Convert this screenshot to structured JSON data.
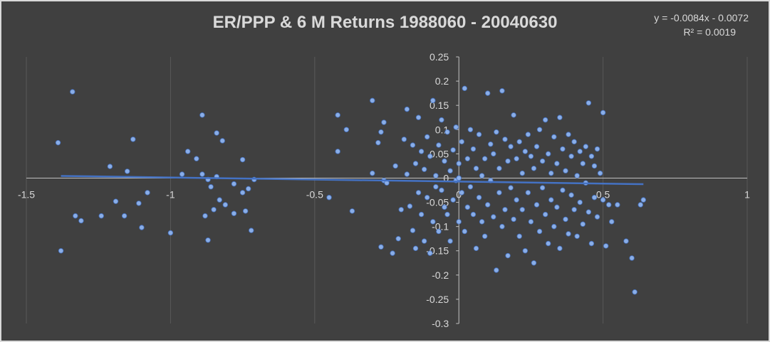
{
  "chart_data": {
    "type": "scatter",
    "title": "ER/PPP  & 6 M Returns 1988060 - 20040630",
    "xlabel": "",
    "ylabel": "",
    "xlim": [
      -1.5,
      1
    ],
    "ylim": [
      -0.3,
      0.25
    ],
    "x_ticks": [
      "-1.5",
      "-1",
      "-0.5",
      "0",
      "0.5",
      "1"
    ],
    "y_ticks": [
      "0.25",
      "0.2",
      "0.15",
      "0.1",
      "0.05",
      "0",
      "-0.05",
      "-0.1",
      "-0.15",
      "-0.2",
      "-0.25",
      "-0.3"
    ],
    "grid": "vertical",
    "trendline": {
      "type": "linear",
      "slope": -0.0084,
      "intercept": -0.0072,
      "x_range": [
        -1.38,
        0.64
      ],
      "equation_text": "y = -0.0084x - 0.0072",
      "r2_text": "R² = 0.0019"
    },
    "colors": {
      "background": "#404040",
      "text": "#d9d9d9",
      "grid": "#595959",
      "point": "#8fb4f0",
      "trendline": "#4472c4"
    },
    "points": [
      [
        -1.39,
        0.073
      ],
      [
        -1.34,
        0.178
      ],
      [
        -1.38,
        -0.15
      ],
      [
        -1.33,
        -0.078
      ],
      [
        -1.31,
        -0.088
      ],
      [
        -1.24,
        -0.078
      ],
      [
        -1.21,
        0.024
      ],
      [
        -1.19,
        -0.048
      ],
      [
        -1.16,
        -0.078
      ],
      [
        -1.15,
        0.014
      ],
      [
        -1.13,
        0.08
      ],
      [
        -1.11,
        -0.052
      ],
      [
        -1.1,
        -0.102
      ],
      [
        -1.08,
        -0.03
      ],
      [
        -1.0,
        -0.113
      ],
      [
        -0.96,
        0.008
      ],
      [
        -0.94,
        0.055
      ],
      [
        -0.91,
        0.04
      ],
      [
        -0.89,
        0.13
      ],
      [
        -0.89,
        0.008
      ],
      [
        -0.88,
        -0.078
      ],
      [
        -0.87,
        -0.128
      ],
      [
        -0.87,
        -0.003
      ],
      [
        -0.86,
        -0.018
      ],
      [
        -0.85,
        -0.065
      ],
      [
        -0.84,
        0.003
      ],
      [
        -0.84,
        0.093
      ],
      [
        -0.83,
        -0.045
      ],
      [
        -0.82,
        0.077
      ],
      [
        -0.81,
        -0.055
      ],
      [
        -0.78,
        -0.073
      ],
      [
        -0.78,
        -0.012
      ],
      [
        -0.75,
        -0.03
      ],
      [
        -0.75,
        0.038
      ],
      [
        -0.74,
        -0.068
      ],
      [
        -0.73,
        -0.022
      ],
      [
        -0.72,
        -0.108
      ],
      [
        -0.71,
        -0.003
      ],
      [
        -0.45,
        -0.04
      ],
      [
        -0.42,
        0.13
      ],
      [
        -0.42,
        0.055
      ],
      [
        -0.39,
        0.1
      ],
      [
        -0.37,
        -0.068
      ],
      [
        -0.3,
        0.16
      ],
      [
        -0.3,
        0.01
      ],
      [
        -0.28,
        0.073
      ],
      [
        -0.27,
        0.095
      ],
      [
        -0.27,
        -0.142
      ],
      [
        -0.26,
        0.115
      ],
      [
        -0.26,
        -0.005
      ],
      [
        -0.25,
        -0.01
      ],
      [
        -0.23,
        -0.155
      ],
      [
        -0.22,
        0.025
      ],
      [
        -0.21,
        -0.125
      ],
      [
        -0.2,
        -0.065
      ],
      [
        -0.19,
        0.08
      ],
      [
        -0.18,
        0.142
      ],
      [
        -0.18,
        0.008
      ],
      [
        -0.17,
        -0.058
      ],
      [
        -0.16,
        -0.108
      ],
      [
        -0.16,
        0.068
      ],
      [
        -0.15,
        -0.145
      ],
      [
        -0.15,
        0.03
      ],
      [
        -0.14,
        0.125
      ],
      [
        -0.14,
        -0.03
      ],
      [
        -0.13,
        0.055
      ],
      [
        -0.13,
        -0.075
      ],
      [
        -0.12,
        -0.13
      ],
      [
        -0.12,
        0.018
      ],
      [
        -0.11,
        0.085
      ],
      [
        -0.11,
        -0.04
      ],
      [
        -0.1,
        -0.155
      ],
      [
        -0.1,
        0.045
      ],
      [
        -0.09,
        0.16
      ],
      [
        -0.09,
        -0.09
      ],
      [
        -0.08,
        0.005
      ],
      [
        -0.08,
        -0.018
      ],
      [
        -0.07,
        0.068
      ],
      [
        -0.07,
        -0.11
      ],
      [
        -0.06,
        0.12
      ],
      [
        -0.06,
        -0.025
      ],
      [
        -0.05,
        0.035
      ],
      [
        -0.05,
        -0.06
      ],
      [
        -0.04,
        0.095
      ],
      [
        -0.04,
        -0.075
      ],
      [
        -0.03,
        -0.13
      ],
      [
        -0.03,
        0.015
      ],
      [
        -0.02,
        0.058
      ],
      [
        -0.02,
        -0.045
      ],
      [
        -0.01,
        0.105
      ],
      [
        -0.01,
        -0.005
      ],
      [
        0.0,
        -0.09
      ],
      [
        0.0,
        0.03
      ],
      [
        0.01,
        0.075
      ],
      [
        0.01,
        -0.03
      ],
      [
        0.02,
        0.185
      ],
      [
        0.02,
        -0.11
      ],
      [
        0.03,
        0.04
      ],
      [
        0.03,
        -0.06
      ],
      [
        0.04,
        0.1
      ],
      [
        0.04,
        -0.018
      ],
      [
        0.05,
        -0.075
      ],
      [
        0.05,
        0.06
      ],
      [
        0.06,
        -0.145
      ],
      [
        0.06,
        0.02
      ],
      [
        0.07,
        -0.04
      ],
      [
        0.07,
        0.09
      ],
      [
        0.08,
        0.005
      ],
      [
        0.08,
        -0.09
      ],
      [
        0.09,
        0.04
      ],
      [
        0.09,
        -0.12
      ],
      [
        0.1,
        0.175
      ],
      [
        0.1,
        -0.055
      ],
      [
        0.11,
        0.07
      ],
      [
        0.11,
        -0.005
      ],
      [
        0.12,
        0.05
      ],
      [
        0.12,
        -0.08
      ],
      [
        0.13,
        0.095
      ],
      [
        0.13,
        -0.19
      ],
      [
        0.14,
        0.02
      ],
      [
        0.14,
        -0.03
      ],
      [
        0.15,
        0.18
      ],
      [
        0.15,
        -0.1
      ],
      [
        0.16,
        0.08
      ],
      [
        0.16,
        -0.065
      ],
      [
        0.17,
        0.035
      ],
      [
        0.17,
        -0.16
      ],
      [
        0.18,
        0.065
      ],
      [
        0.18,
        -0.02
      ],
      [
        0.19,
        0.13
      ],
      [
        0.19,
        -0.085
      ],
      [
        0.2,
        0.04
      ],
      [
        0.2,
        -0.045
      ],
      [
        0.21,
        0.075
      ],
      [
        0.21,
        -0.12
      ],
      [
        0.22,
        0.01
      ],
      [
        0.22,
        -0.065
      ],
      [
        0.23,
        0.055
      ],
      [
        0.23,
        -0.15
      ],
      [
        0.24,
        0.09
      ],
      [
        0.24,
        -0.03
      ],
      [
        0.25,
        0.045
      ],
      [
        0.25,
        -0.09
      ],
      [
        0.26,
        0.02
      ],
      [
        0.26,
        -0.175
      ],
      [
        0.27,
        0.065
      ],
      [
        0.27,
        -0.055
      ],
      [
        0.28,
        0.1
      ],
      [
        0.28,
        -0.11
      ],
      [
        0.29,
        0.035
      ],
      [
        0.29,
        -0.02
      ],
      [
        0.3,
        0.12
      ],
      [
        0.3,
        -0.075
      ],
      [
        0.31,
        0.05
      ],
      [
        0.31,
        -0.135
      ],
      [
        0.32,
        0.01
      ],
      [
        0.32,
        -0.045
      ],
      [
        0.33,
        0.085
      ],
      [
        0.33,
        -0.1
      ],
      [
        0.34,
        0.03
      ],
      [
        0.34,
        -0.06
      ],
      [
        0.35,
        0.125
      ],
      [
        0.35,
        -0.145
      ],
      [
        0.36,
        0.06
      ],
      [
        0.36,
        -0.025
      ],
      [
        0.37,
        0.015
      ],
      [
        0.37,
        -0.085
      ],
      [
        0.38,
        0.09
      ],
      [
        0.38,
        -0.115
      ],
      [
        0.39,
        0.045
      ],
      [
        0.39,
        -0.035
      ],
      [
        0.4,
        0.075
      ],
      [
        0.4,
        -0.065
      ],
      [
        0.41,
        0.005
      ],
      [
        0.41,
        -0.12
      ],
      [
        0.42,
        0.055
      ],
      [
        0.42,
        -0.05
      ],
      [
        0.43,
        0.03
      ],
      [
        0.43,
        -0.095
      ],
      [
        0.44,
        0.065
      ],
      [
        0.44,
        -0.01
      ],
      [
        0.45,
        0.155
      ],
      [
        0.45,
        -0.07
      ],
      [
        0.46,
        0.045
      ],
      [
        0.46,
        -0.135
      ],
      [
        0.47,
        0.025
      ],
      [
        0.47,
        -0.04
      ],
      [
        0.48,
        0.06
      ],
      [
        0.48,
        -0.08
      ],
      [
        0.49,
        0.01
      ],
      [
        0.5,
        0.135
      ],
      [
        0.5,
        -0.045
      ],
      [
        0.51,
        -0.14
      ],
      [
        0.52,
        -0.055
      ],
      [
        0.53,
        -0.09
      ],
      [
        0.55,
        -0.055
      ],
      [
        0.58,
        -0.13
      ],
      [
        0.6,
        -0.165
      ],
      [
        0.61,
        -0.235
      ],
      [
        0.63,
        -0.055
      ],
      [
        0.64,
        -0.045
      ],
      [
        0.0,
        0.0
      ],
      [
        0.0,
        0.0
      ],
      [
        0.0,
        0.0
      ]
    ]
  }
}
